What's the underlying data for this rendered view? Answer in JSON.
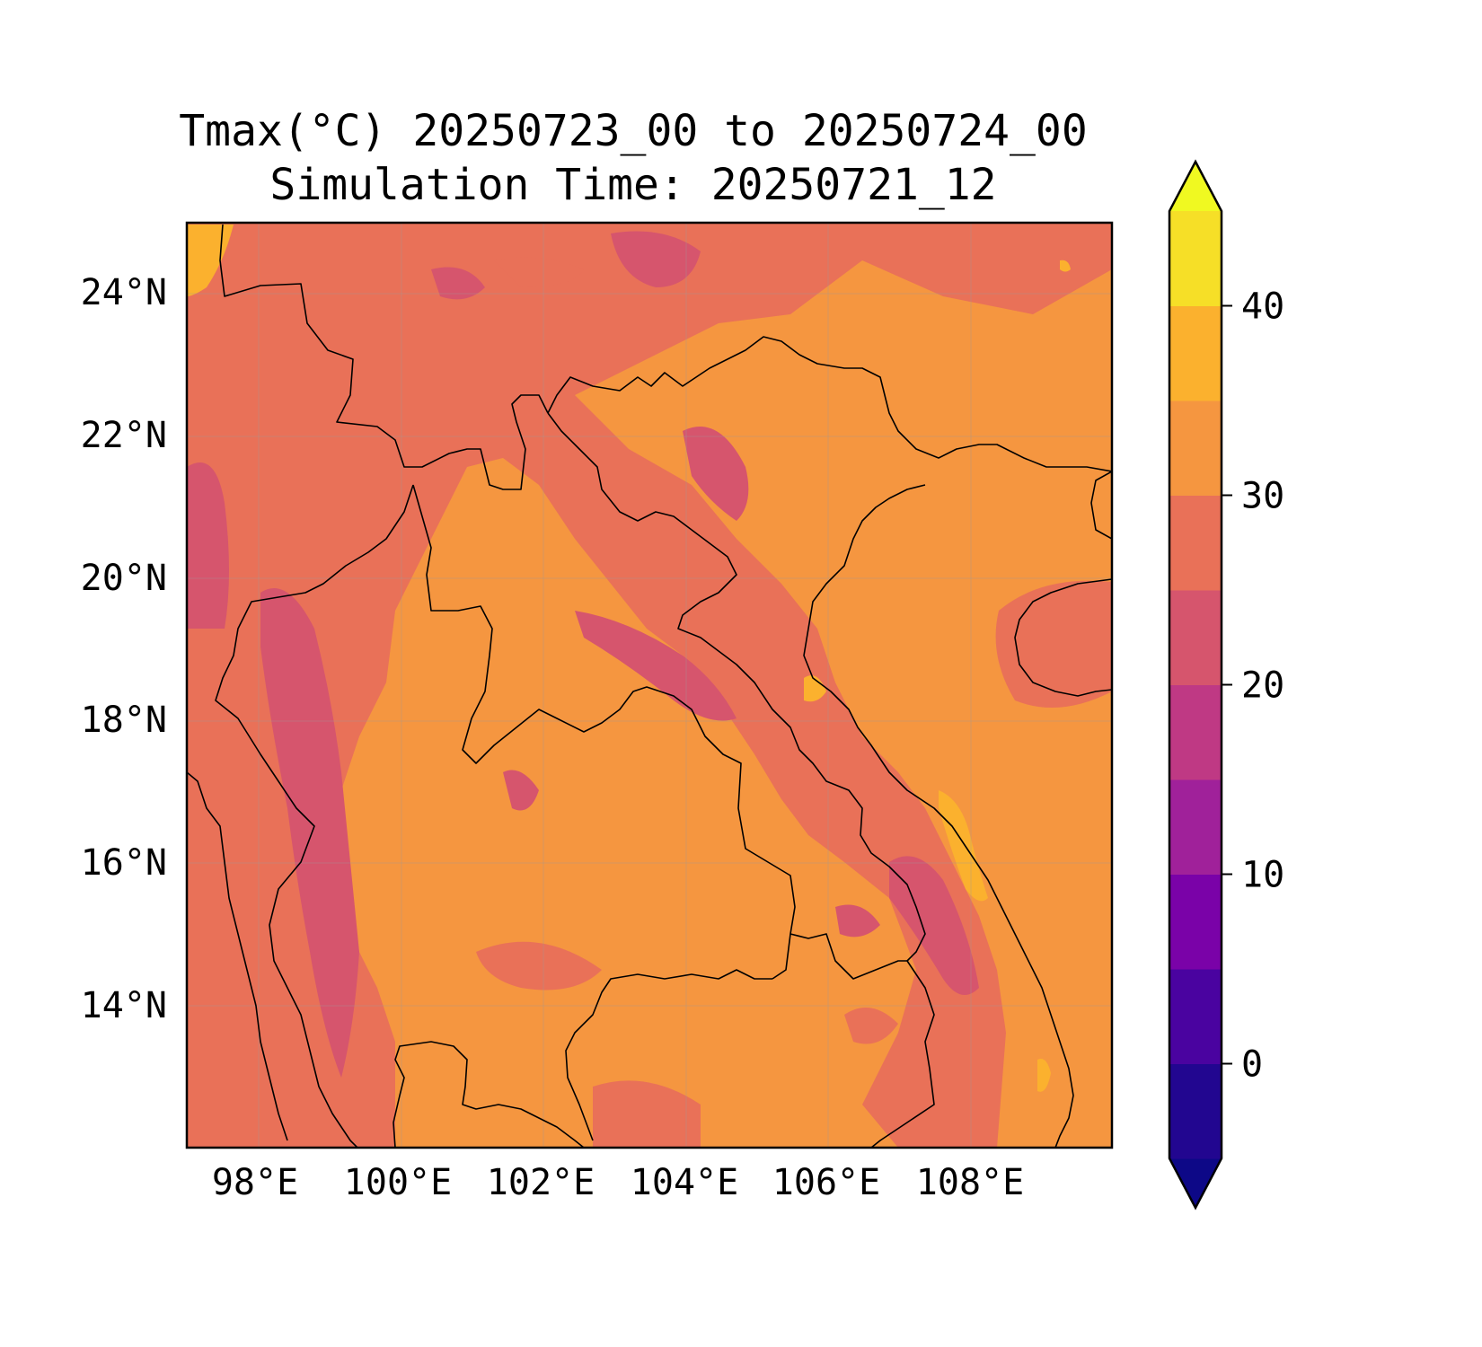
{
  "title": {
    "line1": "Tmax(°C) 20250723_00 to 20250724_00",
    "line2": "Simulation Time: 20250721_12"
  },
  "map": {
    "lon_range": [
      97,
      110
    ],
    "lat_range": [
      12,
      25
    ],
    "lon_ticks": [
      98,
      100,
      102,
      104,
      106,
      108
    ],
    "lat_ticks": [
      14,
      16,
      18,
      20,
      22,
      24
    ],
    "lon_labels": [
      "98°E",
      "100°E",
      "102°E",
      "104°E",
      "106°E",
      "108°E"
    ],
    "lat_labels": [
      "14°N",
      "16°N",
      "18°N",
      "20°N",
      "22°N",
      "24°N"
    ],
    "background_color": "#f59640"
  },
  "colorbar": {
    "levels": [
      -5,
      0,
      5,
      10,
      15,
      20,
      25,
      30,
      35,
      40,
      45
    ],
    "colors": [
      "#220690",
      "#4a03a0",
      "#7a02a8",
      "#a0219a",
      "#bf3984",
      "#d6556d",
      "#e97158",
      "#f59640",
      "#fbb12e",
      "#f6df27"
    ],
    "extend_under_color": "#0d0887",
    "extend_over_color": "#f0f921",
    "tick_values": [
      0,
      10,
      20,
      30,
      40
    ],
    "tick_labels": [
      "0",
      "10",
      "20",
      "30",
      "40"
    ]
  }
}
